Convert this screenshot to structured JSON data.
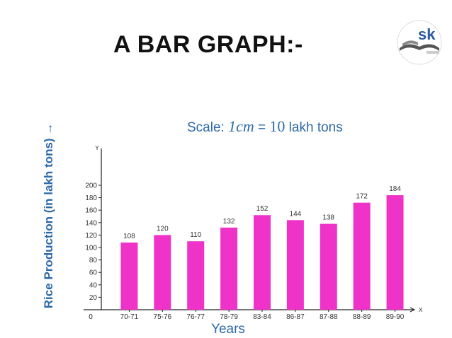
{
  "slide": {
    "title": "A BAR GRAPH:-"
  },
  "logo": {
    "icon": "sk-book-logo-icon",
    "text": "sk"
  },
  "chart_data": {
    "type": "bar",
    "scale_note": {
      "prefix": "Scale: ",
      "math": "1cm",
      "equals": " = ",
      "value": "10",
      "suffix": " lakh tons"
    },
    "xlabel": "Years",
    "ylabel": "Rice Production (in lakh tons) →",
    "y_axis_letter": "Y",
    "x_axis_letter": "X",
    "origin_label": "0",
    "ylim": [
      0,
      210
    ],
    "yticks": [
      20,
      40,
      60,
      80,
      100,
      120,
      140,
      160,
      180,
      200
    ],
    "categories": [
      "70-71",
      "75-76",
      "76-77",
      "78-79",
      "83-84",
      "86-87",
      "87-88",
      "88-89",
      "89-90"
    ],
    "values": [
      108,
      120,
      110,
      132,
      152,
      144,
      138,
      172,
      184
    ],
    "bar_color": "#f033c8",
    "axis_color": "#222222",
    "grid": false,
    "legend": "none"
  }
}
